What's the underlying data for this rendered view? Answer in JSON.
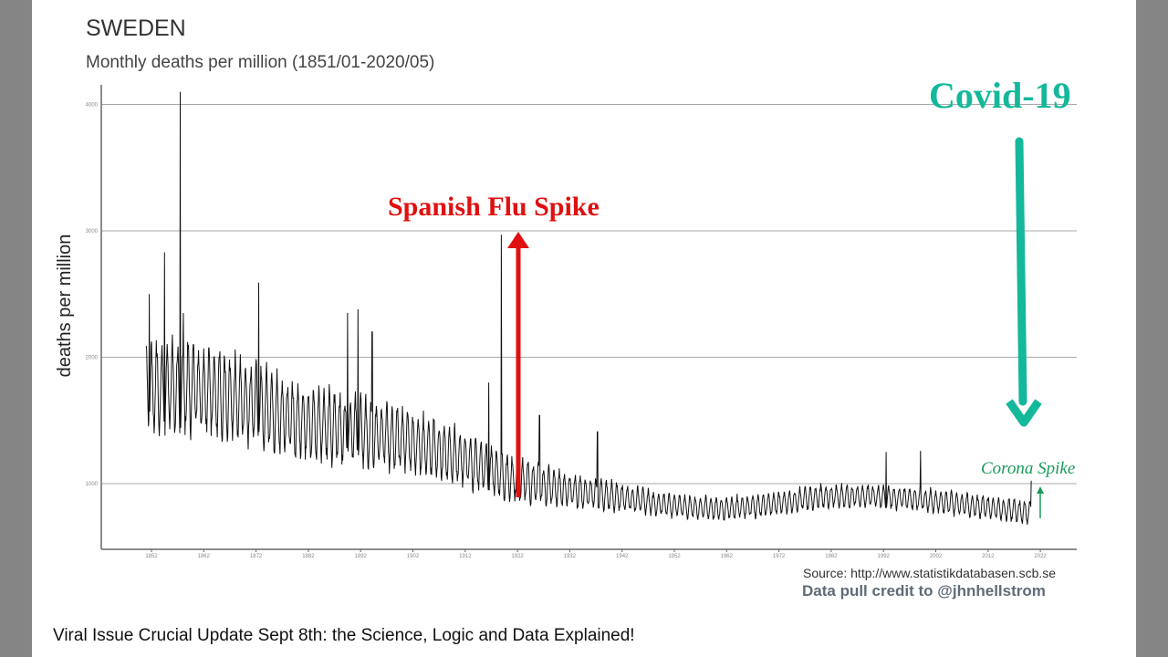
{
  "caption": "Viral Issue Crucial Update Sept 8th: the Science, Logic and Data Explained!",
  "source": "Source: http://www.statistikdatabasen.scb.se",
  "credit": "Data pull credit to @jhnhellstrom",
  "colors": {
    "line": "#111111",
    "spanish": "#e01010",
    "covid": "#14b89a",
    "corona": "#1a9a5a"
  },
  "chart_data": {
    "type": "line",
    "title": "SWEDEN",
    "subtitle": "Monthly deaths per million (1851/01-2020/05)",
    "ylabel": "deaths per million",
    "xlabel": "",
    "ylim": [
      480,
      4100
    ],
    "xlim": [
      1847,
      2031
    ],
    "yticks": [
      1000,
      2000,
      3000,
      4000
    ],
    "xticks": [
      1852,
      1862,
      1872,
      1882,
      1892,
      1902,
      1912,
      1922,
      1932,
      1942,
      1952,
      1962,
      1972,
      1982,
      1992,
      2002,
      2012,
      2022
    ],
    "grid": true,
    "trend": [
      [
        1851,
        1750
      ],
      [
        1860,
        1750
      ],
      [
        1870,
        1650
      ],
      [
        1880,
        1500
      ],
      [
        1890,
        1420
      ],
      [
        1900,
        1350
      ],
      [
        1910,
        1220
      ],
      [
        1920,
        1050
      ],
      [
        1930,
        960
      ],
      [
        1940,
        900
      ],
      [
        1950,
        830
      ],
      [
        1960,
        800
      ],
      [
        1970,
        830
      ],
      [
        1980,
        900
      ],
      [
        1990,
        900
      ],
      [
        2000,
        870
      ],
      [
        2010,
        820
      ],
      [
        2020,
        770
      ]
    ],
    "seasonal_amplitude": [
      [
        1851,
        380
      ],
      [
        1880,
        300
      ],
      [
        1910,
        220
      ],
      [
        1930,
        140
      ],
      [
        1950,
        90
      ],
      [
        2020,
        90
      ]
    ],
    "spikes": [
      [
        1851.6,
        2500
      ],
      [
        1854.5,
        2830
      ],
      [
        1857.5,
        4100
      ],
      [
        1858.1,
        2350
      ],
      [
        1872.5,
        2590
      ],
      [
        1889.5,
        2350
      ],
      [
        1891.5,
        2380
      ],
      [
        1894.2,
        2200
      ],
      [
        1916.5,
        1800
      ],
      [
        1918.9,
        2970
      ],
      [
        1926.2,
        1540
      ],
      [
        1937.3,
        1410
      ],
      [
        1992.5,
        1250
      ],
      [
        1999.1,
        1260
      ],
      [
        2020.3,
        1020
      ]
    ],
    "annotations": [
      {
        "text": "Spanish Flu Spike",
        "year": 1921,
        "value": 2970
      },
      {
        "text": "Covid-19",
        "year": 2016,
        "value": 3900
      },
      {
        "text": "Corona Spike",
        "year": 2022,
        "value": 1000
      }
    ]
  }
}
